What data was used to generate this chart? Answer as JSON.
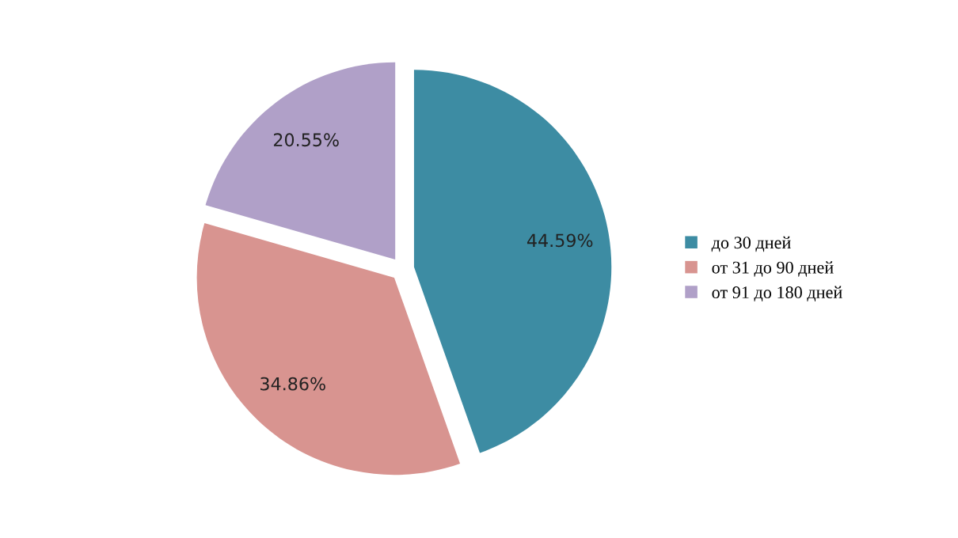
{
  "chart_data": {
    "type": "pie",
    "categories": [
      "до 30 дней",
      "от 31 до 90 дней",
      "от 91 до 180 дней"
    ],
    "values": [
      44.59,
      34.86,
      20.55
    ],
    "colors": [
      "#3d8ca3",
      "#d89490",
      "#b0a0c8"
    ],
    "value_labels": [
      "44.59%",
      "34.86%",
      "20.55%"
    ],
    "legend": "right"
  }
}
